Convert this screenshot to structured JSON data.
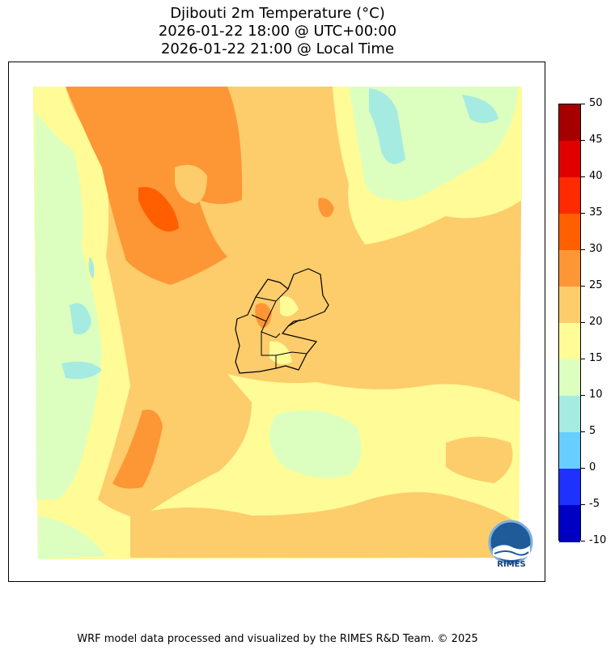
{
  "title": {
    "line1": "Djibouti 2m Temperature (°C)",
    "line2": "2026-01-22 18:00 @ UTC+00:00",
    "line3": "2026-01-22 21:00 @ Local Time"
  },
  "colorbar": {
    "levels": [
      "50",
      "45",
      "40",
      "35",
      "30",
      "25",
      "20",
      "15",
      "10",
      "5",
      "0",
      "-5",
      "-10"
    ],
    "colors": [
      "#a50000",
      "#e10000",
      "#ff2a00",
      "#ff5f00",
      "#fd9635",
      "#fdcc6b",
      "#fffb96",
      "#dcffc0",
      "#a5ebe1",
      "#67ceff",
      "#1f31ff",
      "#0000c3"
    ]
  },
  "logo": {
    "text": "RIMES",
    "icon": "rimes-logo-icon"
  },
  "footer": "WRF model data processed and visualized by the RIMES R&D Team. © 2025"
}
